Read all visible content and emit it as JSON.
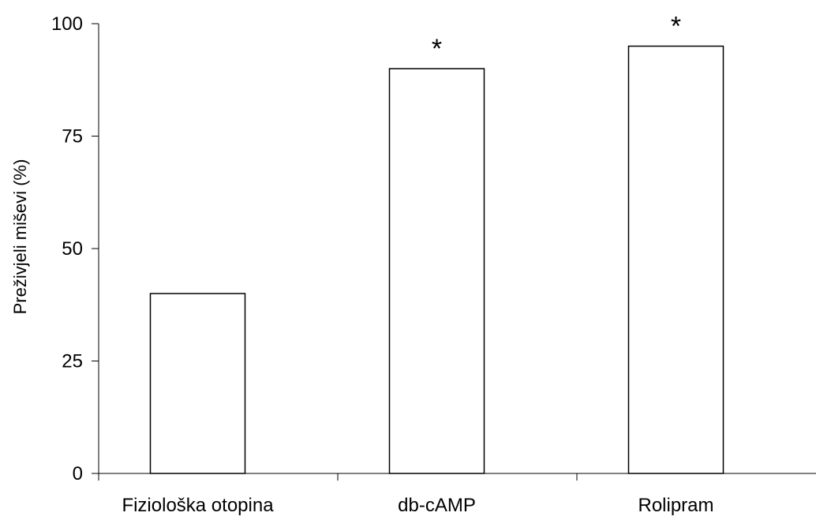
{
  "chart_data": {
    "type": "bar",
    "categories": [
      "Fiziološka otopina",
      "db-cAMP",
      "Rolipram"
    ],
    "values": [
      40,
      90,
      95
    ],
    "annotations": [
      "",
      "*",
      "*"
    ],
    "ylabel": "Preživjeli miševi (%)",
    "xlabel": "",
    "ylim": [
      0,
      100
    ],
    "yticks": [
      0,
      25,
      50,
      75,
      100
    ],
    "grid": false,
    "bar_color": "#ffffff",
    "bar_edge_color": "#000000"
  }
}
